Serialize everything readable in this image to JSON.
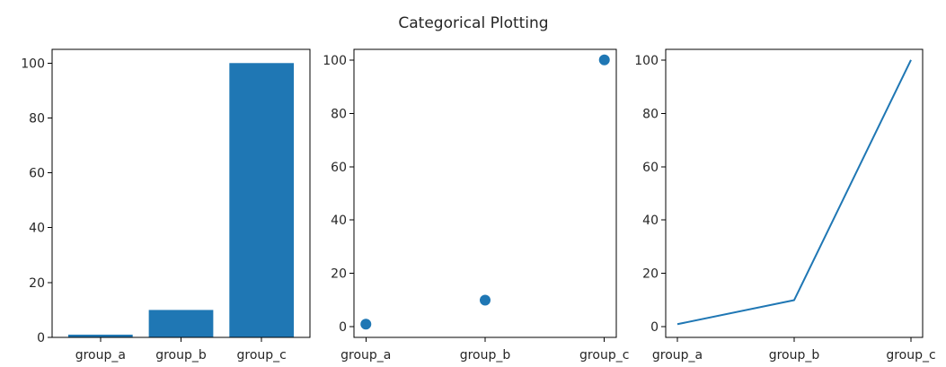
{
  "figure": {
    "title": "Categorical Plotting"
  },
  "chart_data": [
    {
      "type": "bar",
      "categories": [
        "group_a",
        "group_b",
        "group_c"
      ],
      "values": [
        1,
        10,
        100
      ],
      "ylim": [
        0,
        105
      ],
      "yticks": [
        "0",
        "20",
        "40",
        "60",
        "80",
        "100"
      ],
      "color": "#1f77b4",
      "grid": false
    },
    {
      "type": "scatter",
      "categories": [
        "group_a",
        "group_b",
        "group_c"
      ],
      "values": [
        1,
        10,
        100
      ],
      "ylim": [
        -3.95,
        103.95
      ],
      "yticks": [
        "0",
        "20",
        "40",
        "60",
        "80",
        "100"
      ],
      "color": "#1f77b4",
      "grid": false
    },
    {
      "type": "line",
      "categories": [
        "group_a",
        "group_b",
        "group_c"
      ],
      "values": [
        1,
        10,
        100
      ],
      "ylim": [
        -3.95,
        103.95
      ],
      "yticks": [
        "0",
        "20",
        "40",
        "60",
        "80",
        "100"
      ],
      "color": "#1f77b4",
      "grid": false
    }
  ]
}
